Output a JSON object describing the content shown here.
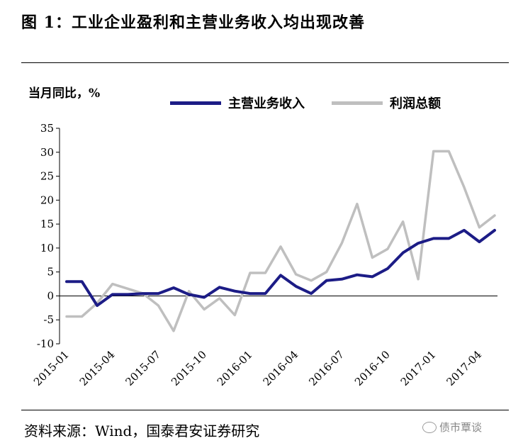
{
  "figure": {
    "title": "图 1：工业企业盈利和主营业务收入均出现改善",
    "y_unit_label": "当月同比，%",
    "source": "资料来源：Wind，国泰君安证券研究",
    "watermark": "债市覃谈"
  },
  "chart_data": {
    "type": "line",
    "title": "图 1：工业企业盈利和主营业务收入均出现改善",
    "xlabel": "",
    "ylabel": "当月同比，%",
    "ylim": [
      -10,
      35
    ],
    "yticks": [
      -10,
      -5,
      0,
      5,
      10,
      15,
      20,
      25,
      30,
      35
    ],
    "grid": false,
    "legend_position": "top-right",
    "x": [
      "2015-01",
      "2015-02",
      "2015-03",
      "2015-04",
      "2015-05",
      "2015-06",
      "2015-07",
      "2015-08",
      "2015-09",
      "2015-10",
      "2015-11",
      "2015-12",
      "2016-01",
      "2016-02",
      "2016-03",
      "2016-04",
      "2016-05",
      "2016-06",
      "2016-07",
      "2016-08",
      "2016-09",
      "2016-10",
      "2016-11",
      "2016-12",
      "2017-01",
      "2017-02",
      "2017-03",
      "2017-04",
      "2017-05"
    ],
    "xtick_labels": [
      "2015-01",
      "2015-04",
      "2015-07",
      "2015-10",
      "2016-01",
      "2016-04",
      "2016-07",
      "2016-10",
      "2017-01",
      "2017-04"
    ],
    "series": [
      {
        "name": "主营业务收入",
        "color": "#1c1c86",
        "values": [
          3.0,
          3.0,
          -2.0,
          0.3,
          0.3,
          0.5,
          0.5,
          1.7,
          0.3,
          -0.3,
          1.8,
          1.0,
          0.5,
          0.5,
          4.3,
          2.0,
          0.5,
          3.2,
          3.5,
          4.4,
          4.0,
          5.7,
          9.0,
          11.0,
          12.0,
          12.0,
          13.7,
          11.3,
          13.7
        ]
      },
      {
        "name": "利润总额",
        "color": "#bfbfbf",
        "values": [
          -4.3,
          -4.3,
          -1.5,
          2.5,
          1.5,
          0.5,
          -2.0,
          -7.3,
          1.0,
          -2.8,
          -0.5,
          -4.0,
          4.8,
          4.8,
          10.3,
          4.5,
          3.2,
          5.0,
          11.0,
          19.2,
          8.0,
          9.8,
          15.5,
          3.5,
          30.2,
          30.2,
          22.7,
          14.3,
          16.8
        ]
      }
    ]
  }
}
